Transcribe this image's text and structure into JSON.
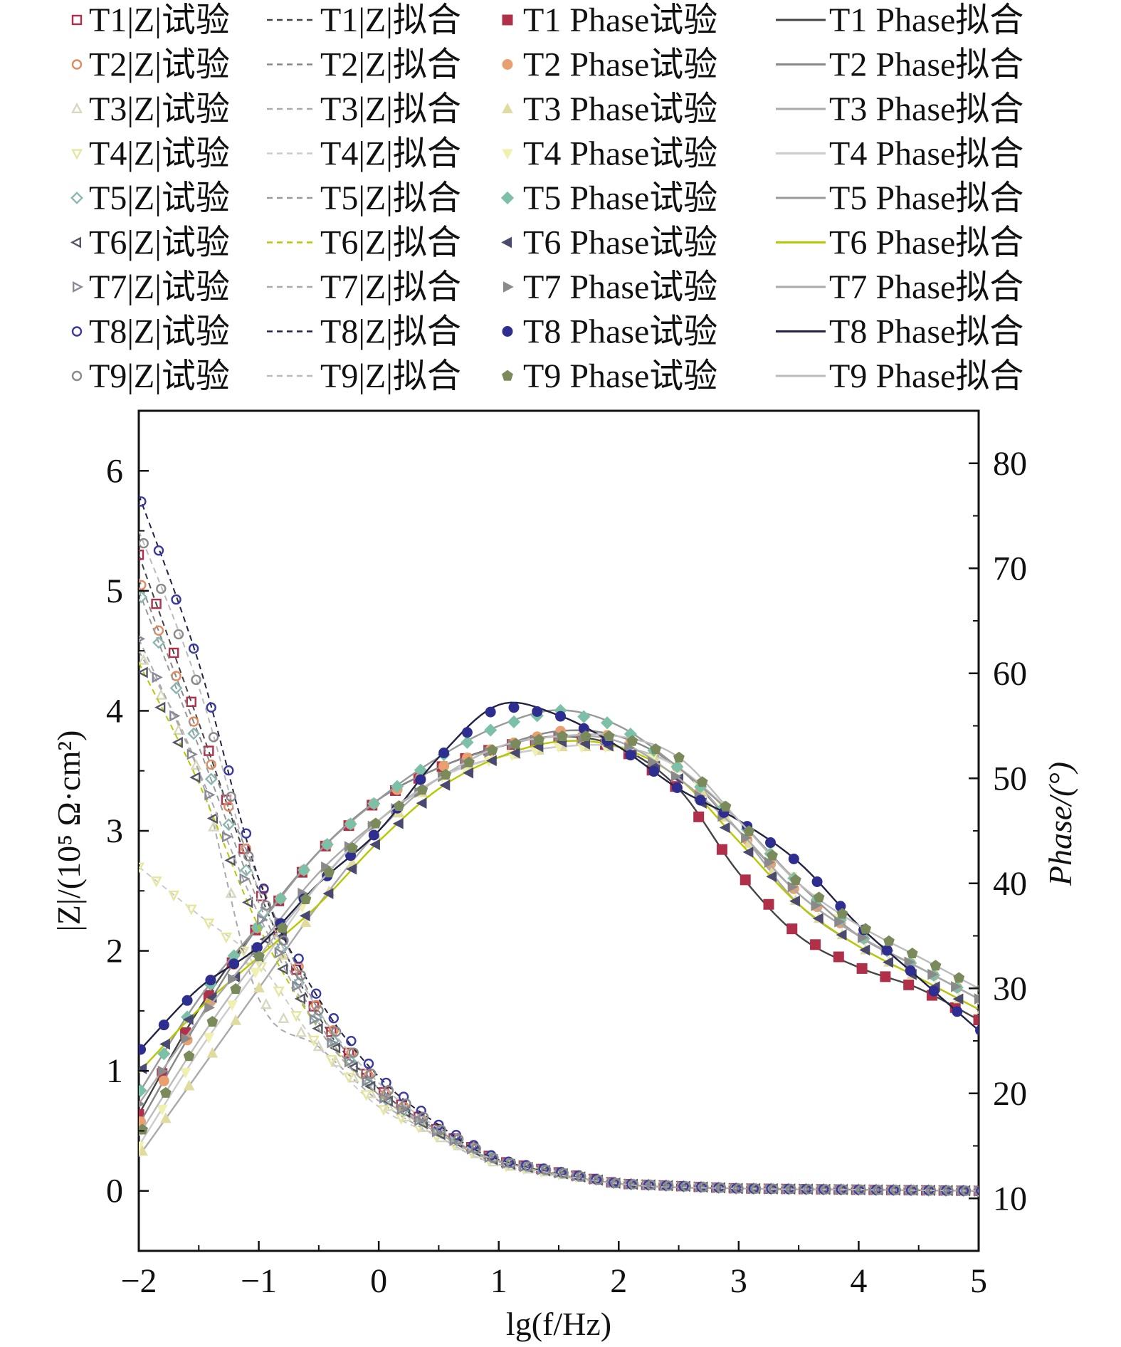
{
  "chart_data": {
    "type": "line",
    "title": "",
    "xlabel": "lg(f/Hz)",
    "ylabel_left": "|Z|/(10⁵ Ω·cm²)",
    "ylabel_right": "Phase/(°)",
    "xlim": [
      -2,
      5
    ],
    "ylim_left": [
      -0.5,
      6.5
    ],
    "ylim_right": [
      5,
      85
    ],
    "x_ticks": [
      "−2",
      "−1",
      "0",
      "1",
      "2",
      "3",
      "4",
      "5"
    ],
    "y_left_ticks": [
      "0",
      "1",
      "2",
      "3",
      "4",
      "5",
      "6"
    ],
    "y_right_ticks": [
      "10",
      "20",
      "30",
      "40",
      "50",
      "60",
      "70",
      "80"
    ],
    "grid": false,
    "legend_position": "top",
    "legend": [
      "T1|Z|试验",
      "T1|Z|拟合",
      "T1 Phase试验",
      "T1 Phase拟合",
      "T2|Z|试验",
      "T2|Z|拟合",
      "T2 Phase试验",
      "T2 Phase拟合",
      "T3|Z|试验",
      "T3|Z|拟合",
      "T3 Phase试验",
      "T3 Phase拟合",
      "T4|Z|试验",
      "T4|Z|拟合",
      "T4 Phase试验",
      "T4 Phase拟合",
      "T5|Z|试验",
      "T5|Z|拟合",
      "T5 Phase试验",
      "T5 Phase拟合",
      "T6|Z|试验",
      "T6|Z|拟合",
      "T6 Phase试验",
      "T6 Phase拟合",
      "T7|Z|试验",
      "T7|Z|拟合",
      "T7 Phase试验",
      "T7 Phase拟合",
      "T8|Z|试验",
      "T8|Z|拟合",
      "T8 Phase试验",
      "T8 Phase拟合",
      "T9|Z|试验",
      "T9|Z|拟合",
      "T9 Phase试验",
      "T9 Phase拟合"
    ],
    "series": [
      {
        "id": "T1",
        "zmarker": "square",
        "phasemarker": "square",
        "z_color": "#b0304a",
        "phase_color": "#b0304a",
        "fit_color": "#444444",
        "z_x": [
          -2.0,
          -1.5,
          -1.0,
          -0.5,
          0.0,
          0.5,
          1.0,
          2.0,
          3.0,
          4.0,
          5.0
        ],
        "z_y": [
          5.3,
          3.9,
          2.5,
          1.45,
          0.85,
          0.5,
          0.25,
          0.06,
          0.02,
          0.01,
          0.0
        ],
        "phase_x": [
          -2.0,
          -1.5,
          -1.0,
          -0.5,
          0.0,
          0.5,
          1.0,
          1.5,
          2.0,
          2.5,
          3.0,
          3.5,
          4.0,
          4.5,
          5.0
        ],
        "phase_y": [
          18,
          28,
          36,
          43,
          48,
          51,
          53,
          54,
          53,
          49,
          41,
          35,
          32,
          30,
          27
        ]
      },
      {
        "id": "T2",
        "zmarker": "circle",
        "phasemarker": "circle",
        "z_color": "#e08a60",
        "phase_color": "#e8a070",
        "fit_color": "#888888",
        "z_x": [
          -2.0,
          -1.5,
          -1.0,
          -0.5,
          0.0,
          0.5,
          1.0,
          2.0,
          3.0,
          4.0,
          5.0
        ],
        "z_y": [
          5.1,
          3.8,
          2.6,
          1.5,
          0.85,
          0.5,
          0.25,
          0.06,
          0.02,
          0.01,
          0.0
        ],
        "phase_x": [
          -2.0,
          -1.5,
          -1.0,
          -0.5,
          0.0,
          0.5,
          1.0,
          1.5,
          2.0,
          2.5,
          3.0,
          3.5,
          4.0,
          4.5,
          5.0
        ],
        "phase_y": [
          17,
          27,
          36,
          43,
          48,
          51,
          53,
          54.5,
          54,
          51,
          45,
          39,
          35,
          32,
          29
        ]
      },
      {
        "id": "T3",
        "zmarker": "triangle",
        "phasemarker": "triangle",
        "z_color": "#d8d8c0",
        "phase_color": "#e0dca0",
        "fit_color": "#aaaaaa",
        "z_x": [
          -2.0,
          -1.5,
          -1.0,
          -0.5,
          0.0,
          0.5,
          1.0,
          2.0,
          3.0,
          4.0,
          5.0
        ],
        "z_y": [
          4.5,
          3.5,
          1.6,
          1.2,
          0.75,
          0.45,
          0.22,
          0.06,
          0.02,
          0.01,
          0.0
        ],
        "phase_x": [
          -2.0,
          -1.5,
          -1.0,
          -0.5,
          0.0,
          0.5,
          1.0,
          1.5,
          2.0,
          2.5,
          3.0,
          3.5,
          4.0,
          4.5,
          5.0
        ],
        "phase_y": [
          14,
          22,
          30,
          38,
          45,
          50,
          52,
          53,
          53,
          51,
          45,
          38,
          34,
          31,
          28
        ]
      },
      {
        "id": "T4",
        "zmarker": "triangle-down",
        "phasemarker": "triangle-down",
        "z_color": "#e6e6a0",
        "phase_color": "#f0f0b0",
        "fit_color": "#cccccc",
        "z_x": [
          -2.0,
          -1.5,
          -1.0,
          -0.5,
          0.0,
          0.5,
          1.0,
          2.0,
          3.0,
          4.0,
          5.0
        ],
        "z_y": [
          2.7,
          2.3,
          1.9,
          1.2,
          0.7,
          0.45,
          0.22,
          0.06,
          0.02,
          0.01,
          0.0
        ],
        "phase_x": [
          -2.0,
          -1.5,
          -1.0,
          -0.5,
          0.0,
          0.5,
          1.0,
          1.5,
          2.0,
          2.5,
          3.0,
          3.5,
          4.0,
          4.5,
          5.0
        ],
        "phase_y": [
          15,
          24,
          32,
          40,
          46,
          50,
          52,
          53,
          53,
          51,
          46,
          40,
          35,
          32,
          29
        ]
      },
      {
        "id": "T5",
        "zmarker": "diamond",
        "phasemarker": "diamond",
        "z_color": "#8ab8b0",
        "phase_color": "#7dc0a8",
        "fit_color": "#999999",
        "z_x": [
          -2.0,
          -1.5,
          -1.0,
          -0.5,
          0.0,
          0.5,
          1.0,
          2.0,
          3.0,
          4.0,
          5.0
        ],
        "z_y": [
          5.0,
          3.7,
          2.4,
          1.4,
          0.8,
          0.5,
          0.25,
          0.06,
          0.02,
          0.01,
          0.0
        ],
        "phase_x": [
          -2.0,
          -1.5,
          -1.0,
          -0.5,
          0.0,
          0.5,
          1.0,
          1.5,
          2.0,
          2.5,
          3.0,
          3.5,
          4.0,
          4.5,
          5.0
        ],
        "phase_y": [
          20,
          29,
          36,
          43,
          48,
          52,
          55,
          56.5,
          55,
          51,
          46,
          40,
          35,
          32,
          29
        ]
      },
      {
        "id": "T6",
        "zmarker": "triangle-left",
        "phasemarker": "triangle-left",
        "z_color": "#555566",
        "phase_color": "#4a4a70",
        "fit_color": "#b8c800",
        "z_x": [
          -2.0,
          -1.5,
          -1.0,
          -0.5,
          0.0,
          0.5,
          1.0,
          2.0,
          3.0,
          4.0,
          5.0
        ],
        "z_y": [
          4.4,
          3.4,
          2.2,
          1.35,
          0.8,
          0.48,
          0.24,
          0.06,
          0.02,
          0.01,
          0.0
        ],
        "phase_x": [
          -2.0,
          -1.5,
          -1.0,
          -0.5,
          0.0,
          0.5,
          1.0,
          1.5,
          2.0,
          2.5,
          3.0,
          3.5,
          4.0,
          4.5,
          5.0
        ],
        "phase_y": [
          22,
          28,
          33,
          38,
          44,
          49,
          52,
          53.5,
          53,
          50,
          44,
          38,
          34,
          31,
          28
        ]
      },
      {
        "id": "T7",
        "zmarker": "triangle-right",
        "phasemarker": "triangle-right",
        "z_color": "#888899",
        "phase_color": "#8a8a8a",
        "fit_color": "#aaaaaa",
        "z_x": [
          -2.0,
          -1.5,
          -1.0,
          -0.5,
          0.0,
          0.5,
          1.0,
          2.0,
          3.0,
          4.0,
          5.0
        ],
        "z_y": [
          4.6,
          3.5,
          2.3,
          1.35,
          0.8,
          0.48,
          0.24,
          0.06,
          0.02,
          0.01,
          0.0
        ],
        "phase_x": [
          -2.0,
          -1.5,
          -1.0,
          -0.5,
          0.0,
          0.5,
          1.0,
          1.5,
          2.0,
          2.5,
          3.0,
          3.5,
          4.0,
          4.5,
          5.0
        ],
        "phase_y": [
          19,
          27,
          34,
          41,
          46,
          50,
          53,
          54,
          53.5,
          50,
          45,
          39,
          35,
          32,
          29
        ]
      },
      {
        "id": "T8",
        "zmarker": "circle",
        "phasemarker": "circle",
        "z_color": "#3a3aa0",
        "phase_color": "#2e2e90",
        "fit_color": "#222244",
        "z_x": [
          -2.0,
          -1.5,
          -1.0,
          -0.5,
          0.0,
          0.5,
          1.0,
          2.0,
          3.0,
          4.0,
          5.0
        ],
        "z_y": [
          5.8,
          4.4,
          2.6,
          1.6,
          0.95,
          0.55,
          0.26,
          0.06,
          0.02,
          0.01,
          0.0
        ],
        "phase_x": [
          -2.0,
          -1.5,
          -1.0,
          -0.5,
          0.0,
          0.5,
          1.0,
          1.5,
          2.0,
          2.5,
          3.0,
          3.5,
          4.0,
          4.5,
          5.0
        ],
        "phase_y": [
          24,
          30,
          34,
          40,
          45,
          52,
          57,
          56,
          53,
          49,
          46,
          42,
          36,
          31,
          26
        ]
      },
      {
        "id": "T9",
        "zmarker": "circle",
        "phasemarker": "pentagon",
        "z_color": "#8a8a8a",
        "phase_color": "#7a8a5a",
        "fit_color": "#bbbbbb",
        "z_x": [
          -2.0,
          -1.5,
          -1.0,
          -0.5,
          0.0,
          0.5,
          1.0,
          2.0,
          3.0,
          4.0,
          5.0
        ],
        "z_y": [
          5.5,
          4.2,
          2.5,
          1.5,
          0.9,
          0.52,
          0.25,
          0.06,
          0.02,
          0.01,
          0.0
        ],
        "phase_x": [
          -2.0,
          -1.5,
          -1.0,
          -0.5,
          0.0,
          0.5,
          1.0,
          1.5,
          2.0,
          2.5,
          3.0,
          3.5,
          4.0,
          4.5,
          5.0
        ],
        "phase_y": [
          16,
          25,
          33,
          40,
          46,
          50,
          53,
          54,
          54,
          52,
          46,
          40,
          36,
          33,
          30
        ]
      }
    ]
  }
}
